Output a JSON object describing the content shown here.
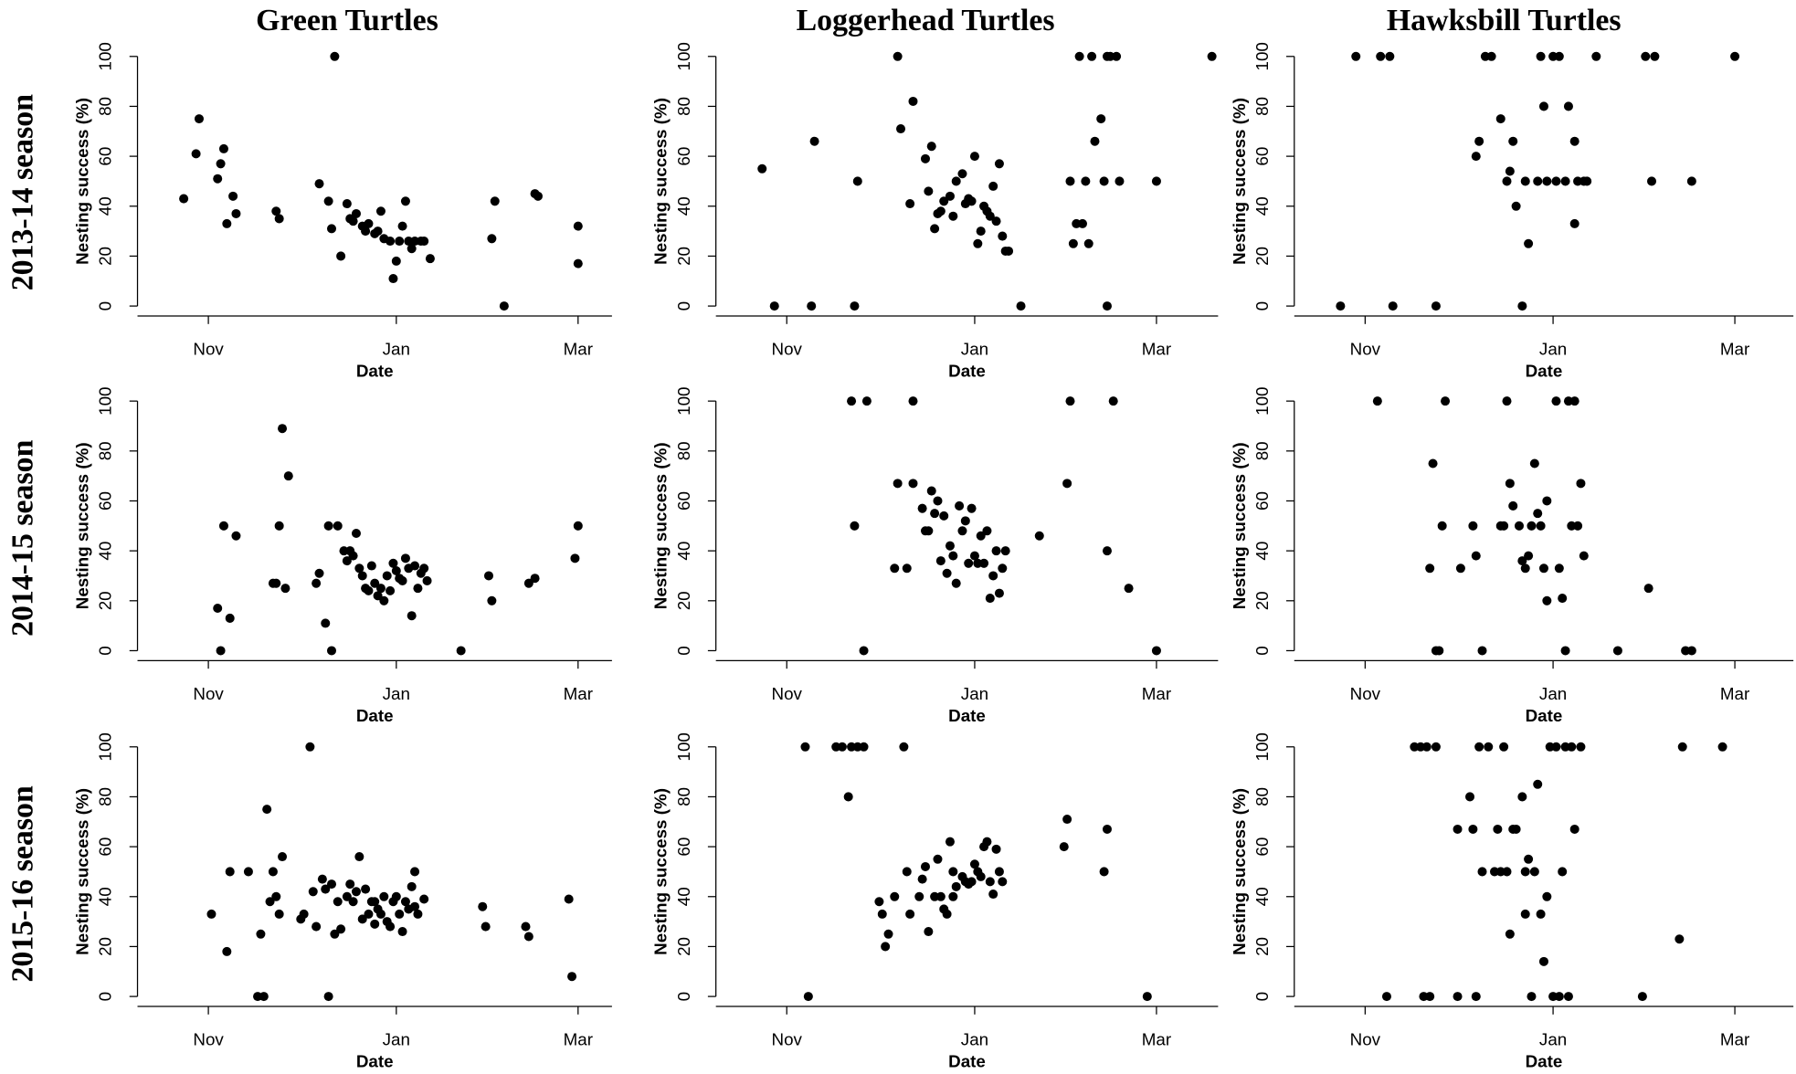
{
  "column_titles": [
    "Green Turtles",
    "Loggerhead Turtles",
    "Hawksbill Turtles"
  ],
  "row_titles": [
    "2013-14 season",
    "2014-15 season",
    "2015-16 season"
  ],
  "chart_data": [
    {
      "type": "scatter",
      "xlabel": "Date",
      "ylabel": "Nesting success (%)",
      "color": "#000000",
      "xlim": [
        -23,
        131
      ],
      "ylim": [
        -4,
        104
      ],
      "xticks": [
        {
          "value": 0,
          "label": "Nov"
        },
        {
          "value": 61,
          "label": "Jan"
        },
        {
          "value": 120,
          "label": "Mar"
        }
      ],
      "yticks": [
        0,
        20,
        40,
        60,
        80,
        100
      ],
      "x": [
        -8,
        -4,
        -3,
        3,
        4,
        5,
        6,
        8,
        9,
        22,
        23,
        36,
        39,
        40,
        41,
        43,
        45,
        46,
        47,
        48,
        50,
        51,
        52,
        54,
        55,
        56,
        57,
        59,
        60,
        61,
        62,
        63,
        64,
        65,
        66,
        67,
        69,
        70,
        72,
        92,
        93,
        96,
        106,
        107,
        120,
        120
      ],
      "values": [
        43,
        61,
        75,
        51,
        57,
        63,
        33,
        44,
        37,
        38,
        35,
        49,
        42,
        31,
        100,
        20,
        41,
        35,
        34,
        37,
        32,
        30,
        33,
        29,
        30,
        38,
        27,
        26,
        11,
        18,
        26,
        32,
        42,
        26,
        23,
        26,
        26,
        26,
        19,
        27,
        42,
        0,
        45,
        44,
        32,
        17
      ]
    },
    {
      "type": "scatter",
      "xlabel": "Date",
      "ylabel": "Nesting success (%)",
      "color": "#000000",
      "xlim": [
        -23,
        140
      ],
      "ylim": [
        -4,
        104
      ],
      "xticks": [
        {
          "value": 0,
          "label": "Nov"
        },
        {
          "value": 61,
          "label": "Jan"
        },
        {
          "value": 120,
          "label": "Mar"
        }
      ],
      "yticks": [
        0,
        20,
        40,
        60,
        80,
        100
      ],
      "x": [
        -8,
        -4,
        8,
        9,
        22,
        23,
        36,
        37,
        40,
        41,
        45,
        46,
        47,
        48,
        49,
        50,
        51,
        53,
        54,
        55,
        57,
        58,
        59,
        60,
        61,
        62,
        63,
        64,
        65,
        66,
        67,
        68,
        69,
        70,
        71,
        72,
        76,
        92,
        93,
        94,
        95,
        96,
        97,
        98,
        99,
        100,
        102,
        103,
        104,
        104,
        105,
        107,
        108,
        120,
        138
      ],
      "values": [
        55,
        0,
        0,
        66,
        0,
        50,
        100,
        71,
        41,
        82,
        59,
        46,
        64,
        31,
        37,
        38,
        42,
        44,
        36,
        50,
        53,
        41,
        43,
        42,
        60,
        25,
        30,
        40,
        38,
        36,
        48,
        34,
        57,
        28,
        22,
        22,
        0,
        50,
        25,
        33,
        100,
        33,
        50,
        25,
        100,
        66,
        75,
        50,
        0,
        100,
        100,
        100,
        50,
        50,
        100
      ]
    },
    {
      "type": "scatter",
      "xlabel": "Date",
      "ylabel": "Nesting success (%)",
      "color": "#000000",
      "xlim": [
        -23,
        139
      ],
      "ylim": [
        -4,
        104
      ],
      "xticks": [
        {
          "value": 0,
          "label": "Nov"
        },
        {
          "value": 61,
          "label": "Jan"
        },
        {
          "value": 120,
          "label": "Mar"
        }
      ],
      "yticks": [
        0,
        20,
        40,
        60,
        80,
        100
      ],
      "x": [
        -8,
        -3,
        5,
        8,
        9,
        23,
        36,
        37,
        39,
        41,
        44,
        46,
        47,
        48,
        49,
        51,
        52,
        53,
        56,
        57,
        58,
        59,
        61,
        62,
        63,
        65,
        66,
        68,
        68,
        69,
        71,
        72,
        75,
        91,
        93,
        94,
        106,
        120
      ],
      "values": [
        0,
        100,
        100,
        100,
        0,
        0,
        60,
        66,
        100,
        100,
        75,
        50,
        54,
        66,
        40,
        0,
        50,
        25,
        50,
        100,
        80,
        50,
        100,
        50,
        100,
        50,
        80,
        66,
        33,
        50,
        50,
        50,
        100,
        100,
        50,
        100,
        50,
        100
      ]
    },
    {
      "type": "scatter",
      "xlabel": "Date",
      "ylabel": "Nesting success (%)",
      "color": "#000000",
      "xlim": [
        -23,
        131
      ],
      "ylim": [
        -4,
        104
      ],
      "xticks": [
        {
          "value": 0,
          "label": "Nov"
        },
        {
          "value": 61,
          "label": "Jan"
        },
        {
          "value": 120,
          "label": "Mar"
        }
      ],
      "yticks": [
        0,
        20,
        40,
        60,
        80,
        100
      ],
      "x": [
        3,
        4,
        5,
        7,
        9,
        21,
        22,
        23,
        24,
        25,
        26,
        35,
        36,
        38,
        39,
        40,
        42,
        44,
        45,
        46,
        47,
        48,
        49,
        50,
        51,
        52,
        53,
        54,
        55,
        56,
        57,
        58,
        59,
        60,
        61,
        62,
        63,
        64,
        65,
        66,
        67,
        68,
        69,
        70,
        71,
        82,
        91,
        92,
        104,
        106,
        119,
        120
      ],
      "values": [
        17,
        0,
        50,
        13,
        46,
        27,
        27,
        50,
        89,
        25,
        70,
        27,
        31,
        11,
        50,
        0,
        50,
        40,
        36,
        40,
        38,
        47,
        33,
        30,
        25,
        24,
        34,
        27,
        22,
        25,
        20,
        30,
        24,
        35,
        32,
        29,
        28,
        37,
        33,
        14,
        34,
        25,
        31,
        33,
        28,
        0,
        30,
        20,
        27,
        29,
        37,
        50
      ]
    },
    {
      "type": "scatter",
      "xlabel": "Date",
      "ylabel": "Nesting success (%)",
      "color": "#000000",
      "xlim": [
        -23,
        140
      ],
      "ylim": [
        -4,
        104
      ],
      "xticks": [
        {
          "value": 0,
          "label": "Nov"
        },
        {
          "value": 61,
          "label": "Jan"
        },
        {
          "value": 120,
          "label": "Mar"
        }
      ],
      "yticks": [
        0,
        20,
        40,
        60,
        80,
        100
      ],
      "x": [
        21,
        22,
        25,
        26,
        35,
        36,
        39,
        41,
        41,
        44,
        45,
        46,
        47,
        48,
        49,
        50,
        51,
        52,
        53,
        54,
        55,
        56,
        57,
        58,
        59,
        60,
        61,
        62,
        63,
        64,
        65,
        66,
        67,
        68,
        69,
        70,
        71,
        82,
        91,
        92,
        104,
        106,
        111,
        120
      ],
      "values": [
        100,
        50,
        0,
        100,
        33,
        67,
        33,
        67,
        100,
        57,
        48,
        48,
        64,
        55,
        60,
        36,
        54,
        31,
        42,
        38,
        27,
        58,
        48,
        52,
        35,
        57,
        38,
        35,
        46,
        35,
        48,
        21,
        30,
        40,
        23,
        33,
        40,
        46,
        67,
        100,
        40,
        100,
        25,
        0
      ]
    },
    {
      "type": "scatter",
      "xlabel": "Date",
      "ylabel": "Nesting success (%)",
      "color": "#000000",
      "xlim": [
        -23,
        139
      ],
      "ylim": [
        -4,
        104
      ],
      "xticks": [
        {
          "value": 0,
          "label": "Nov"
        },
        {
          "value": 61,
          "label": "Jan"
        },
        {
          "value": 120,
          "label": "Mar"
        }
      ],
      "yticks": [
        0,
        20,
        40,
        60,
        80,
        100
      ],
      "x": [
        4,
        21,
        22,
        23,
        24,
        25,
        26,
        31,
        35,
        36,
        38,
        44,
        45,
        46,
        47,
        48,
        50,
        51,
        52,
        53,
        54,
        55,
        56,
        57,
        58,
        59,
        59,
        62,
        63,
        64,
        65,
        66,
        67,
        68,
        69,
        70,
        71,
        82,
        92,
        104,
        106
      ],
      "values": [
        100,
        33,
        75,
        0,
        0,
        50,
        100,
        33,
        50,
        38,
        0,
        50,
        50,
        100,
        67,
        58,
        50,
        36,
        33,
        38,
        50,
        75,
        55,
        50,
        33,
        20,
        60,
        100,
        33,
        21,
        0,
        100,
        50,
        100,
        50,
        67,
        38,
        0,
        25,
        0,
        0
      ]
    },
    {
      "type": "scatter",
      "xlabel": "Date",
      "ylabel": "Nesting success (%)",
      "color": "#000000",
      "xlim": [
        -23,
        131
      ],
      "ylim": [
        -4,
        104
      ],
      "xticks": [
        {
          "value": 0,
          "label": "Nov"
        },
        {
          "value": 61,
          "label": "Jan"
        },
        {
          "value": 120,
          "label": "Mar"
        }
      ],
      "yticks": [
        0,
        20,
        40,
        60,
        80,
        100
      ],
      "x": [
        1,
        6,
        7,
        13,
        16,
        17,
        18,
        19,
        20,
        21,
        22,
        23,
        24,
        30,
        31,
        33,
        34,
        35,
        37,
        38,
        39,
        40,
        41,
        42,
        43,
        45,
        46,
        47,
        48,
        49,
        50,
        51,
        52,
        53,
        54,
        54,
        55,
        56,
        57,
        58,
        59,
        60,
        61,
        62,
        63,
        64,
        65,
        66,
        67,
        67,
        68,
        70,
        89,
        90,
        103,
        104,
        117,
        118
      ],
      "values": [
        33,
        18,
        50,
        50,
        0,
        25,
        0,
        75,
        38,
        50,
        40,
        33,
        56,
        31,
        33,
        100,
        42,
        28,
        47,
        43,
        0,
        45,
        25,
        38,
        27,
        40,
        45,
        38,
        42,
        56,
        31,
        43,
        33,
        38,
        38,
        29,
        35,
        33,
        40,
        30,
        28,
        38,
        40,
        33,
        26,
        38,
        35,
        44,
        36,
        50,
        33,
        39,
        36,
        28,
        28,
        24,
        39,
        8
      ]
    },
    {
      "type": "scatter",
      "xlabel": "Date",
      "ylabel": "Nesting success (%)",
      "color": "#000000",
      "xlim": [
        -23,
        140
      ],
      "ylim": [
        -4,
        104
      ],
      "xticks": [
        {
          "value": 0,
          "label": "Nov"
        },
        {
          "value": 61,
          "label": "Jan"
        },
        {
          "value": 120,
          "label": "Mar"
        }
      ],
      "yticks": [
        0,
        20,
        40,
        60,
        80,
        100
      ],
      "x": [
        6,
        7,
        16,
        18,
        20,
        21,
        23,
        25,
        30,
        31,
        32,
        33,
        35,
        38,
        39,
        40,
        43,
        44,
        45,
        46,
        48,
        49,
        50,
        51,
        52,
        53,
        54,
        54,
        55,
        57,
        58,
        59,
        60,
        61,
        62,
        63,
        64,
        65,
        66,
        67,
        68,
        69,
        70,
        90,
        91,
        103,
        104,
        117
      ],
      "values": [
        100,
        0,
        100,
        100,
        80,
        100,
        100,
        100,
        38,
        33,
        20,
        25,
        40,
        100,
        50,
        33,
        40,
        47,
        52,
        26,
        40,
        55,
        40,
        35,
        33,
        62,
        50,
        40,
        44,
        48,
        46,
        45,
        46,
        53,
        50,
        48,
        60,
        62,
        46,
        41,
        59,
        50,
        46,
        60,
        71,
        50,
        67,
        0
      ]
    },
    {
      "type": "scatter",
      "xlabel": "Date",
      "ylabel": "Nesting success (%)",
      "color": "#000000",
      "xlim": [
        -23,
        139
      ],
      "ylim": [
        -4,
        104
      ],
      "xticks": [
        {
          "value": 0,
          "label": "Nov"
        },
        {
          "value": 61,
          "label": "Jan"
        },
        {
          "value": 120,
          "label": "Mar"
        }
      ],
      "yticks": [
        0,
        20,
        40,
        60,
        80,
        100
      ],
      "x": [
        7,
        16,
        18,
        19,
        20,
        21,
        23,
        30,
        30,
        34,
        35,
        36,
        37,
        38,
        40,
        42,
        43,
        44,
        45,
        46,
        47,
        48,
        49,
        51,
        52,
        52,
        53,
        54,
        55,
        56,
        57,
        58,
        59,
        60,
        61,
        62,
        63,
        64,
        65,
        66,
        67,
        68,
        70,
        90,
        102,
        103,
        116
      ],
      "values": [
        0,
        100,
        100,
        0,
        100,
        0,
        100,
        67,
        0,
        80,
        67,
        0,
        100,
        50,
        100,
        50,
        67,
        50,
        100,
        50,
        25,
        67,
        67,
        80,
        50,
        33,
        55,
        0,
        50,
        85,
        33,
        14,
        40,
        100,
        0,
        100,
        0,
        50,
        100,
        0,
        100,
        67,
        100,
        0,
        23,
        100,
        100
      ]
    }
  ]
}
